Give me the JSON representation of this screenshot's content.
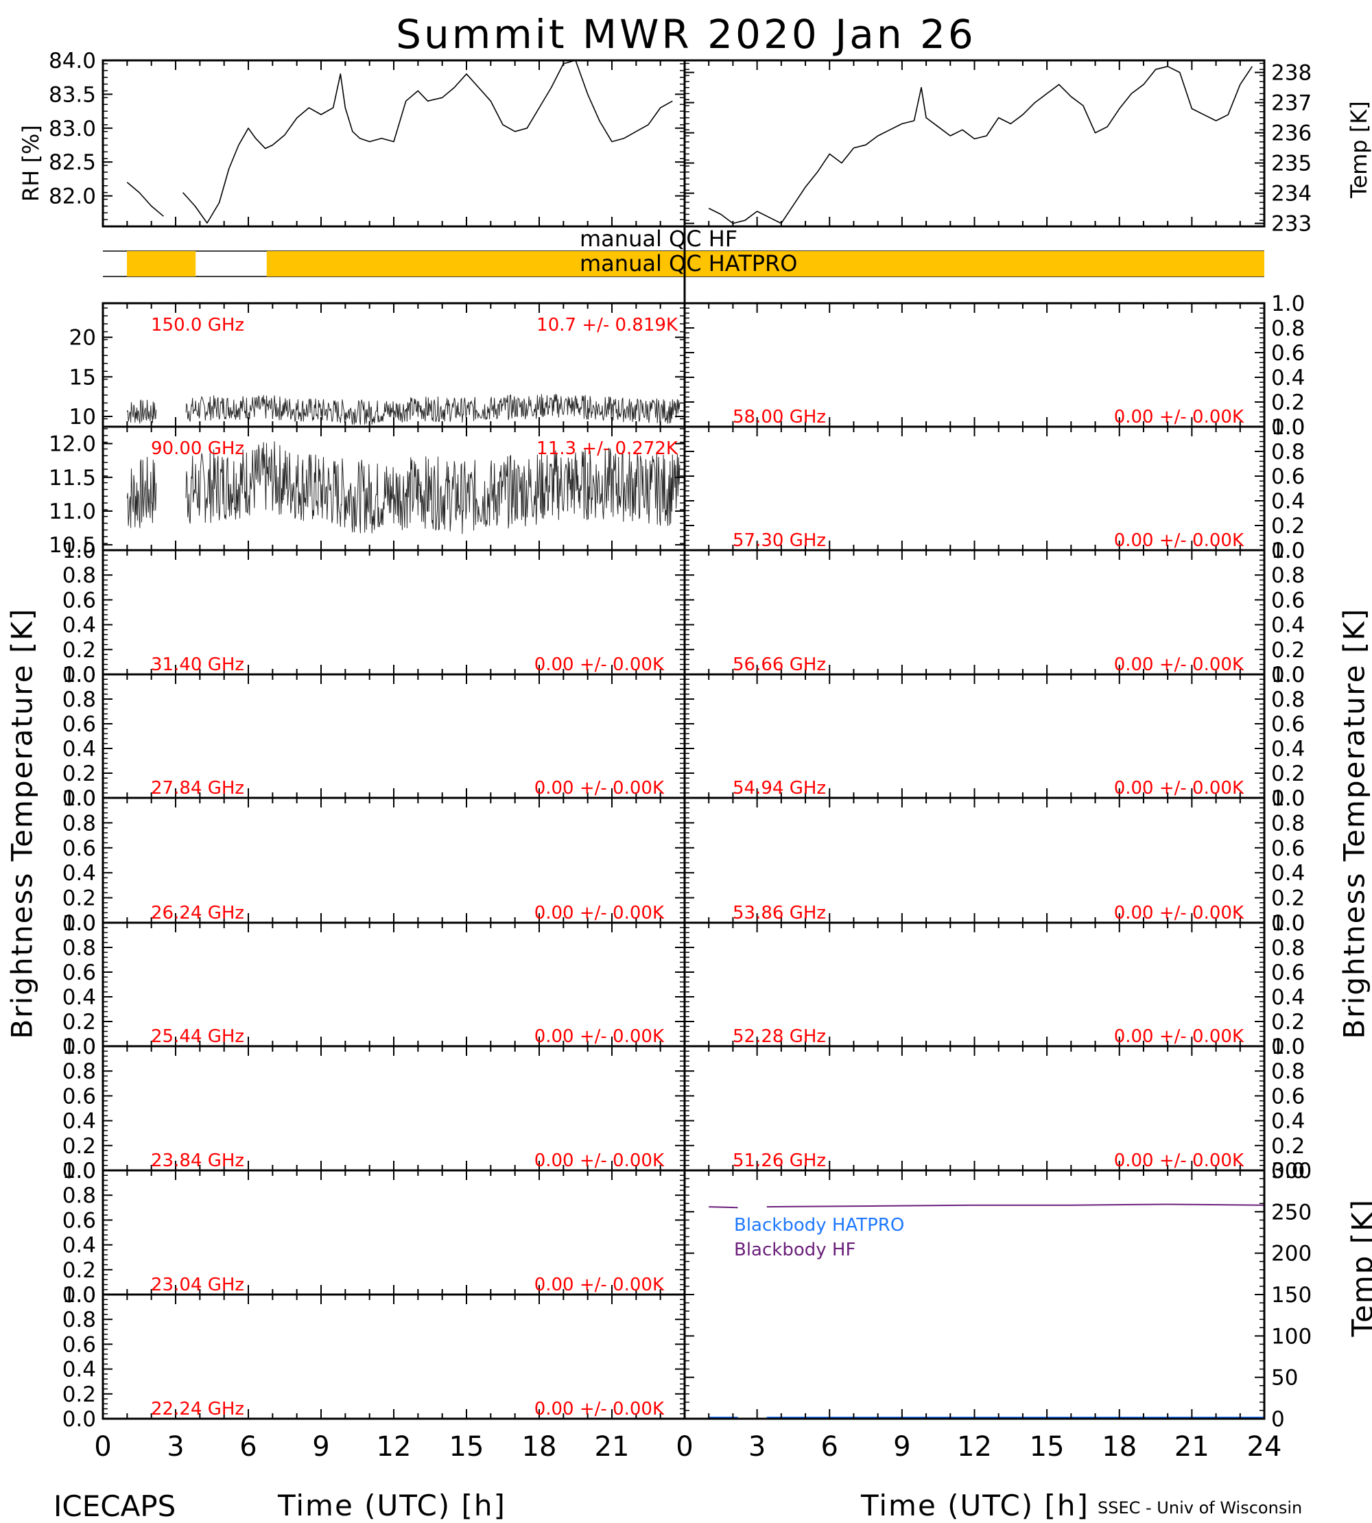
{
  "title": "Summit MWR 2020 Jan 26",
  "footer": {
    "left": "ICECAPS",
    "right": "SSEC - Univ of Wisconsin"
  },
  "colors": {
    "qc_bar": "#FFC300",
    "label_red": "#FF0000",
    "blackbody_hatpro": "#1E78FF",
    "blackbody_hf": "#6A1E7A",
    "trace": "#000000"
  },
  "qc": {
    "hf_label": "manual QC HF",
    "hatpro_label": "manual QC HATPRO"
  },
  "chart_data": [
    {
      "type": "line",
      "name": "rh",
      "ylabel": "RH [%]",
      "ylim": [
        81.55,
        84.0
      ],
      "yticks": [
        82.0,
        82.5,
        83.0,
        83.5,
        84.0
      ],
      "xlim": [
        0,
        24
      ],
      "x": [
        1.0,
        1.5,
        2.0,
        2.5,
        3.3,
        3.8,
        4.3,
        4.8,
        5.2,
        5.6,
        6.0,
        6.3,
        6.7,
        7.0,
        7.5,
        8.0,
        8.5,
        9.0,
        9.5,
        9.8,
        10.0,
        10.3,
        10.6,
        11.0,
        11.5,
        12.0,
        12.5,
        13.0,
        13.4,
        14.0,
        14.5,
        15.0,
        15.5,
        16.0,
        16.5,
        17.0,
        17.5,
        18.0,
        18.5,
        19.0,
        19.5,
        20.0,
        20.5,
        21.0,
        21.5,
        22.0,
        22.5,
        23.0,
        23.5
      ],
      "y": [
        82.2,
        82.05,
        81.85,
        81.7,
        82.05,
        81.85,
        81.6,
        81.9,
        82.4,
        82.75,
        83.0,
        82.85,
        82.7,
        82.75,
        82.9,
        83.15,
        83.3,
        83.2,
        83.3,
        83.8,
        83.3,
        82.95,
        82.85,
        82.8,
        82.85,
        82.8,
        83.4,
        83.55,
        83.4,
        83.45,
        83.6,
        83.8,
        83.6,
        83.4,
        83.05,
        82.95,
        83.0,
        83.3,
        83.6,
        83.95,
        84.0,
        83.5,
        83.1,
        82.8,
        82.85,
        82.95,
        83.05,
        83.3,
        83.4
      ]
    },
    {
      "type": "line",
      "name": "temp",
      "ylabel": "Temp [K]",
      "ylim": [
        232.9,
        238.4
      ],
      "yticks": [
        233,
        234,
        235,
        236,
        237,
        238
      ],
      "xlim": [
        0,
        24
      ],
      "x": [
        1.0,
        1.5,
        2.0,
        2.5,
        3.0,
        3.5,
        4.0,
        4.5,
        5.0,
        5.5,
        6.0,
        6.5,
        7.0,
        7.5,
        8.0,
        8.5,
        9.0,
        9.5,
        9.8,
        10.0,
        10.5,
        11.0,
        11.5,
        12.0,
        12.5,
        13.0,
        13.5,
        14.0,
        14.5,
        15.0,
        15.5,
        16.0,
        16.5,
        17.0,
        17.5,
        18.0,
        18.5,
        19.0,
        19.5,
        20.0,
        20.5,
        21.0,
        21.5,
        22.0,
        22.5,
        23.0,
        23.5
      ],
      "y": [
        233.5,
        233.3,
        233.0,
        233.1,
        233.4,
        233.2,
        233.0,
        233.6,
        234.2,
        234.7,
        235.3,
        235.0,
        235.5,
        235.6,
        235.9,
        236.1,
        236.3,
        236.4,
        237.5,
        236.5,
        236.2,
        235.9,
        236.1,
        235.8,
        235.9,
        236.5,
        236.3,
        236.6,
        237.0,
        237.3,
        237.6,
        237.2,
        236.9,
        236.0,
        236.2,
        236.8,
        237.3,
        237.6,
        238.1,
        238.2,
        238.0,
        236.8,
        236.6,
        236.4,
        236.6,
        237.6,
        238.2
      ]
    },
    {
      "type": "line",
      "name": "tb_150",
      "side": "left",
      "freq_label": "150.0 GHz",
      "stat_label": "10.7 +/- 0.819K",
      "ylim": [
        8.7,
        24.3
      ],
      "yticks": [
        10,
        15,
        20
      ],
      "xlim": [
        0,
        24
      ],
      "x": [
        1.0,
        2.2,
        3.4,
        5,
        7,
        9,
        11,
        13,
        15,
        17,
        19,
        21,
        23.8
      ],
      "y": [
        10.6,
        10.5,
        10.8,
        11.2,
        11.1,
        10.7,
        10.5,
        11.0,
        10.8,
        11.2,
        11.4,
        10.9,
        10.6
      ]
    },
    {
      "type": "line",
      "name": "tb_90",
      "side": "left",
      "freq_label": "90.00 GHz",
      "stat_label": "11.3 +/- 0.272K",
      "ylim": [
        10.42,
        12.25
      ],
      "yticks": [
        10.5,
        11.0,
        11.5,
        12.0
      ],
      "xlim": [
        0,
        24
      ],
      "x": [
        1.0,
        2.2,
        3.4,
        5,
        7,
        9,
        11,
        13,
        15,
        17,
        19,
        21,
        23.8
      ],
      "y": [
        11.2,
        11.3,
        11.3,
        11.4,
        11.5,
        11.3,
        11.2,
        11.3,
        11.2,
        11.3,
        11.4,
        11.4,
        11.3
      ]
    },
    {
      "type": "line",
      "name": "tb_3140",
      "side": "left",
      "freq_label": "31.40 GHz",
      "stat_label": "0.00 +/- 0.00K",
      "ylim": [
        0,
        1
      ],
      "yticks": [
        0.0,
        0.2,
        0.4,
        0.6,
        0.8,
        1.0
      ],
      "x": [],
      "y": []
    },
    {
      "type": "line",
      "name": "tb_2784",
      "side": "left",
      "freq_label": "27.84 GHz",
      "stat_label": "0.00 +/- 0.00K",
      "ylim": [
        0,
        1
      ],
      "yticks": [
        0.0,
        0.2,
        0.4,
        0.6,
        0.8,
        1.0
      ],
      "x": [],
      "y": []
    },
    {
      "type": "line",
      "name": "tb_2624",
      "side": "left",
      "freq_label": "26.24 GHz",
      "stat_label": "0.00 +/- 0.00K",
      "ylim": [
        0,
        1
      ],
      "yticks": [
        0.0,
        0.2,
        0.4,
        0.6,
        0.8,
        1.0
      ],
      "x": [],
      "y": []
    },
    {
      "type": "line",
      "name": "tb_2544",
      "side": "left",
      "freq_label": "25.44 GHz",
      "stat_label": "0.00 +/- 0.00K",
      "ylim": [
        0,
        1
      ],
      "yticks": [
        0.0,
        0.2,
        0.4,
        0.6,
        0.8,
        1.0
      ],
      "x": [],
      "y": []
    },
    {
      "type": "line",
      "name": "tb_2384",
      "side": "left",
      "freq_label": "23.84 GHz",
      "stat_label": "0.00 +/- 0.00K",
      "ylim": [
        0,
        1
      ],
      "yticks": [
        0.0,
        0.2,
        0.4,
        0.6,
        0.8,
        1.0
      ],
      "x": [],
      "y": []
    },
    {
      "type": "line",
      "name": "tb_2304",
      "side": "left",
      "freq_label": "23.04 GHz",
      "stat_label": "0.00 +/- 0.00K",
      "ylim": [
        0,
        1
      ],
      "yticks": [
        0.0,
        0.2,
        0.4,
        0.6,
        0.8,
        1.0
      ],
      "x": [],
      "y": []
    },
    {
      "type": "line",
      "name": "tb_2224",
      "side": "left",
      "freq_label": "22.24 GHz",
      "stat_label": "0.00 +/- 0.00K",
      "ylim": [
        0,
        1
      ],
      "yticks": [
        0.0,
        0.2,
        0.4,
        0.6,
        0.8,
        1.0
      ],
      "x": [],
      "y": []
    },
    {
      "type": "line",
      "name": "tb_5800",
      "side": "right",
      "freq_label": "58.00 GHz",
      "stat_label": "0.00 +/- 0.00K",
      "ylim": [
        0,
        1
      ],
      "yticks": [
        0.0,
        0.2,
        0.4,
        0.6,
        0.8,
        1.0
      ],
      "x": [],
      "y": []
    },
    {
      "type": "line",
      "name": "tb_5730",
      "side": "right",
      "freq_label": "57.30 GHz",
      "stat_label": "0.00 +/- 0.00K",
      "ylim": [
        0,
        1
      ],
      "yticks": [
        0.0,
        0.2,
        0.4,
        0.6,
        0.8,
        1.0
      ],
      "x": [],
      "y": []
    },
    {
      "type": "line",
      "name": "tb_5666",
      "side": "right",
      "freq_label": "56.66 GHz",
      "stat_label": "0.00 +/- 0.00K",
      "ylim": [
        0,
        1
      ],
      "yticks": [
        0.0,
        0.2,
        0.4,
        0.6,
        0.8,
        1.0
      ],
      "x": [],
      "y": []
    },
    {
      "type": "line",
      "name": "tb_5494",
      "side": "right",
      "freq_label": "54.94 GHz",
      "stat_label": "0.00 +/- 0.00K",
      "ylim": [
        0,
        1
      ],
      "yticks": [
        0.0,
        0.2,
        0.4,
        0.6,
        0.8,
        1.0
      ],
      "x": [],
      "y": []
    },
    {
      "type": "line",
      "name": "tb_5386",
      "side": "right",
      "freq_label": "53.86 GHz",
      "stat_label": "0.00 +/- 0.00K",
      "ylim": [
        0,
        1
      ],
      "yticks": [
        0.0,
        0.2,
        0.4,
        0.6,
        0.8,
        1.0
      ],
      "x": [],
      "y": []
    },
    {
      "type": "line",
      "name": "tb_5228",
      "side": "right",
      "freq_label": "52.28 GHz",
      "stat_label": "0.00 +/- 0.00K",
      "ylim": [
        0,
        1
      ],
      "yticks": [
        0.0,
        0.2,
        0.4,
        0.6,
        0.8,
        1.0
      ],
      "x": [],
      "y": []
    },
    {
      "type": "line",
      "name": "tb_5126",
      "side": "right",
      "freq_label": "51.26 GHz",
      "stat_label": "0.00 +/- 0.00K",
      "ylim": [
        0,
        1
      ],
      "yticks": [
        0.0,
        0.2,
        0.4,
        0.6,
        0.8,
        1.0
      ],
      "x": [],
      "y": []
    },
    {
      "type": "line",
      "name": "blackbody",
      "ylabel": "Temp [K]",
      "ylim": [
        0,
        300
      ],
      "yticks": [
        0,
        50,
        100,
        150,
        200,
        250,
        300
      ],
      "xlim": [
        0,
        24
      ],
      "series": [
        {
          "name": "Blackbody HATPRO",
          "x": [
            1.0,
            2.2,
            3.4,
            24.0
          ],
          "y": [
            0,
            0,
            0,
            0
          ]
        },
        {
          "name": "Blackbody HF",
          "x": [
            1.0,
            2.2,
            3.4,
            8,
            12,
            16,
            20,
            24.0
          ],
          "y": [
            256,
            255,
            256,
            257,
            258,
            258,
            259,
            258
          ]
        }
      ]
    }
  ],
  "axes": {
    "tb_ylabel": "Brightness Temperature [K]",
    "xlabel": "Time (UTC) [h]",
    "xtick_labels_left": [
      "0",
      "3",
      "6",
      "9",
      "12",
      "15",
      "18",
      "21"
    ],
    "xtick_labels_right": [
      "0",
      "3",
      "6",
      "9",
      "12",
      "15",
      "18",
      "21",
      "24"
    ]
  }
}
